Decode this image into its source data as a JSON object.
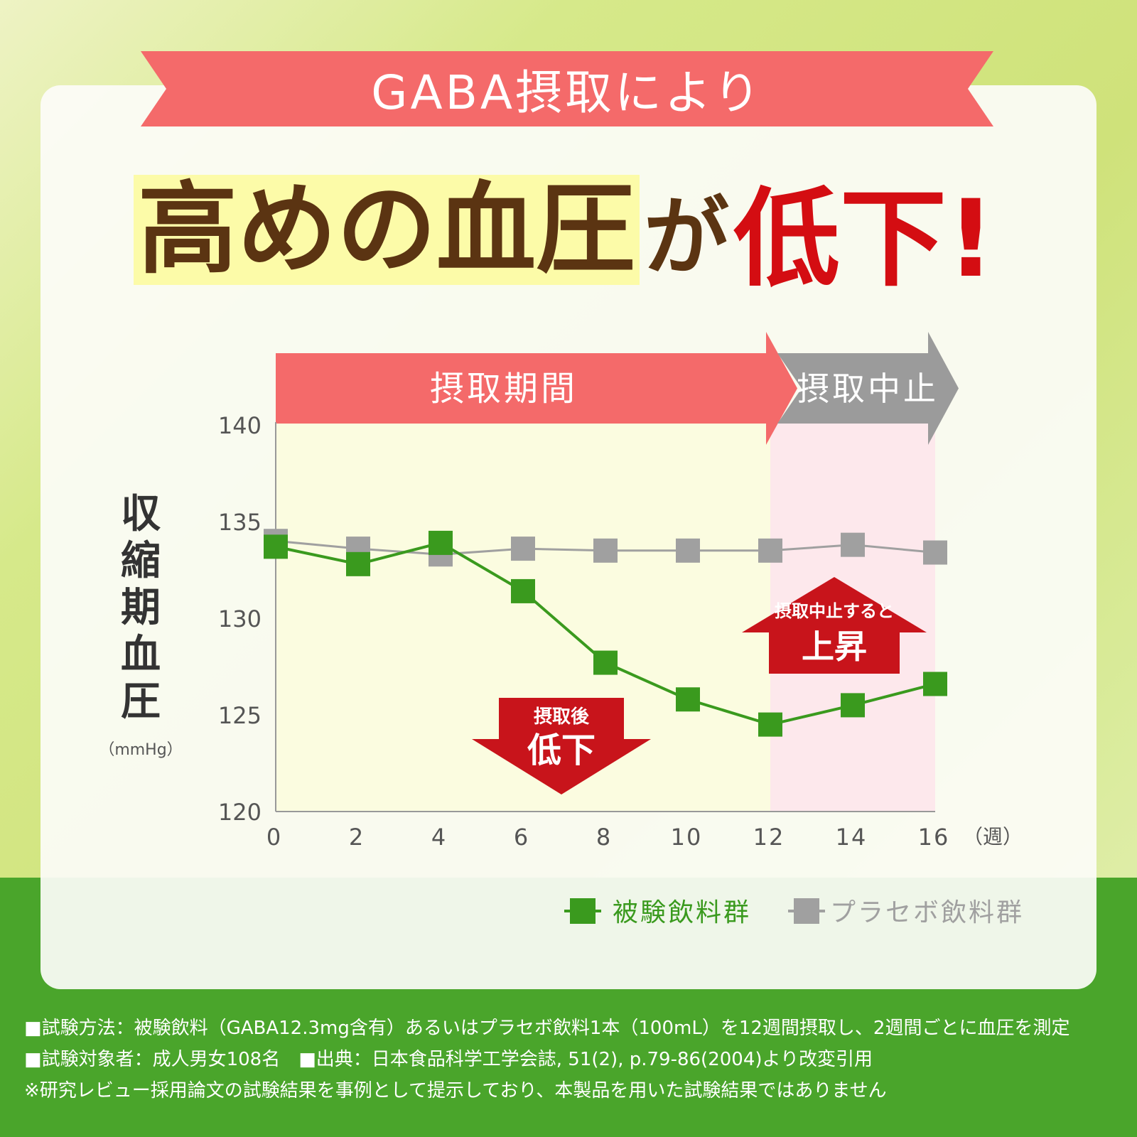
{
  "header": {
    "ribbon": "GABA摂取により",
    "headline_part1": "高めの血圧",
    "headline_part2": "が",
    "headline_part3": "低下!"
  },
  "chart_data": {
    "type": "line",
    "x": [
      0,
      2,
      4,
      6,
      8,
      10,
      12,
      14,
      16
    ],
    "x_tick_labels": [
      "0",
      "2",
      "4",
      "6",
      "8",
      "10",
      "12",
      "14",
      "16"
    ],
    "x_unit": "（週）",
    "xlim": [
      0,
      16
    ],
    "ylim": [
      120,
      140
    ],
    "y_ticks": [
      120,
      125,
      130,
      135,
      140
    ],
    "ylabel": "収縮期血圧",
    "yunit": "（mmHg）",
    "series": [
      {
        "name": "被験飲料群",
        "color": "#3a9a1e",
        "values": [
          133.7,
          132.8,
          133.9,
          131.4,
          127.7,
          125.8,
          124.5,
          125.5,
          126.6
        ]
      },
      {
        "name": "プラセボ飲料群",
        "color": "#a0a0a0",
        "values": [
          134.0,
          133.6,
          133.3,
          133.6,
          133.5,
          133.5,
          133.5,
          133.8,
          133.4
        ]
      }
    ],
    "period_labels": {
      "intake": "摂取期間",
      "stop": "摂取中止"
    },
    "annotations": {
      "down_small": "摂取後",
      "down_big": "低下",
      "up_small": "摂取中止すると",
      "up_big": "上昇"
    },
    "colors": {
      "intake_bg": "#fbfce0",
      "stop_bg": "#fde8ec",
      "intake_arrow": "#f46a6a",
      "stop_arrow": "#9b9b9b",
      "annotation": "#c8141b"
    },
    "legend_position": "bottom-right"
  },
  "footer": {
    "line1": "■試験方法：被験飲料（GABA12.3mg含有）あるいはプラセボ飲料1本（100mL）を12週間摂取し、2週間ごとに血圧を測定",
    "line2": "■試験対象者：成人男女108名　■出典：日本食品科学工学会誌, 51(2), p.79-86(2004)より改変引用",
    "line3": "※研究レビュー採用論文の試験結果を事例として提示しており、本製品を用いた試験結果ではありません"
  }
}
